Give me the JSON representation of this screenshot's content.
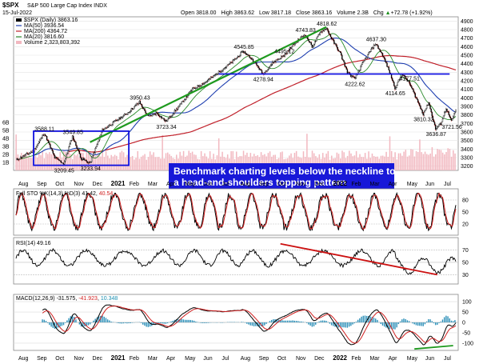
{
  "header": {
    "symbol": "$SPX",
    "name": "S&P 500 Large Cap Index",
    "exchange": "INDX",
    "date": "15-Jul-2022",
    "open_label": "Open",
    "open": "3818.00",
    "high_label": "High",
    "high": "3863.62",
    "low_label": "Low",
    "low": "3817.18",
    "close_label": "Close",
    "close": "3863.16",
    "volume_label": "Volume",
    "volume": "2.3B",
    "chg_label": "Chg",
    "chg": "+72.78 (+1.92%)",
    "chg_arrow": "▲"
  },
  "legend": {
    "price": "$SPX (Daily) 3863.16",
    "ma50": "MA(50) 3936.54",
    "ma200": "MA(200) 4364.72",
    "ma20": "MA(20) 3816.60",
    "volume": "Volume 2,323,803,392"
  },
  "colors": {
    "ma50": "#1f3fb0",
    "ma200": "#c0202a",
    "ma20": "#2a8a2a",
    "trend_green": "#1e9a1e",
    "blue_lines": "#1010e0",
    "red_trend": "#cc1010",
    "volume": "#f2b8c0",
    "annotation_bg": "#1818d8"
  },
  "annotation": {
    "line1": "Benchmark charting levels below the neckline to",
    "line2": "a head-and-shoulders topping pattern"
  },
  "indicators": {
    "sto": {
      "label": "Full STO %K(14,3) %D(3) 41.42, ",
      "d_value": "40.54"
    },
    "rsi": {
      "label": "RSI(14) 49.16"
    },
    "macd": {
      "label": "MACD(12,26,9) -31.575, ",
      "signal": "-41.923",
      "sep": ", ",
      "hist": "10.348"
    }
  },
  "chart_data": {
    "type": "line",
    "title": "$SPX S&P 500 Large Cap Index INDX",
    "price_axis": {
      "ticks": [
        3200,
        3300,
        3400,
        3500,
        3600,
        3700,
        3800,
        3900,
        4000,
        4100,
        4200,
        4300,
        4400,
        4500,
        4600,
        4700,
        4800,
        4900
      ],
      "range": [
        3150,
        4950
      ]
    },
    "volume_axis": {
      "ticks": [
        "1B",
        "2B",
        "3B",
        "4B",
        "5B",
        "6B"
      ]
    },
    "time_axis": {
      "labels": [
        "Aug",
        "Sep",
        "Oct",
        "Nov",
        "Dec",
        "2021",
        "Feb",
        "Mar",
        "Apr",
        "May",
        "Jun",
        "Jul",
        "Aug",
        "Sep",
        "Oct",
        "Nov",
        "Dec",
        "2022",
        "Feb",
        "Mar",
        "Apr",
        "May",
        "Jun",
        "Jul"
      ]
    },
    "price_annotations": [
      {
        "label": "3588.11",
        "value": 3588.11
      },
      {
        "label": "3549.85",
        "value": 3549.85
      },
      {
        "label": "3209.45",
        "value": 3209.45
      },
      {
        "label": "3233.94",
        "value": 3233.94
      },
      {
        "label": "3950.43",
        "value": 3950.43
      },
      {
        "label": "3723.34",
        "value": 3723.34
      },
      {
        "label": "4545.85",
        "value": 4545.85
      },
      {
        "label": "4278.94",
        "value": 4278.94
      },
      {
        "label": "4495.12",
        "value": 4495.12
      },
      {
        "label": "4743.83",
        "value": 4743.83
      },
      {
        "label": "4818.62",
        "value": 4818.62
      },
      {
        "label": "4222.62",
        "value": 4222.62
      },
      {
        "label": "4637.30",
        "value": 4637.3
      },
      {
        "label": "4114.65",
        "value": 4114.65
      },
      {
        "label": "4177.51",
        "value": 4177.51
      },
      {
        "label": "3810.32",
        "value": 3810.32
      },
      {
        "label": "3636.87",
        "value": 3636.87
      },
      {
        "label": "3721.56",
        "value": 3721.56
      }
    ],
    "neckline": 4280,
    "sto_axis": {
      "ticks": [
        20,
        50,
        80
      ]
    },
    "rsi_axis": {
      "ticks": [
        30,
        50,
        70
      ]
    },
    "macd_axis": {
      "ticks": [
        -100,
        -50,
        0,
        50,
        100
      ]
    }
  }
}
